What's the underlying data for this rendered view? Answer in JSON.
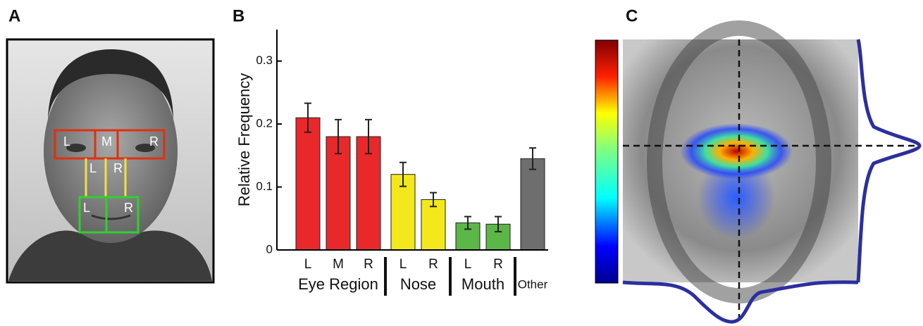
{
  "panel_labels": [
    "A",
    "B",
    "C"
  ],
  "face_box_labels": {
    "eyes": [
      "L",
      "M",
      "R"
    ],
    "nose": [
      "L",
      "R"
    ],
    "mouth": [
      "L",
      "R"
    ]
  },
  "chart_data": {
    "type": "bar",
    "y_label": "Relative Frequency",
    "ylim": [
      0,
      0.35
    ],
    "yticks": [
      0,
      0.1,
      0.2,
      0.3
    ],
    "groups": [
      {
        "name": "Eye Region",
        "color": "#e8282a",
        "categories": [
          "L",
          "M",
          "R"
        ],
        "values": [
          0.21,
          0.18,
          0.18
        ],
        "errors": [
          0.023,
          0.027,
          0.027
        ]
      },
      {
        "name": "Nose",
        "color": "#f2e81c",
        "categories": [
          "L",
          "R"
        ],
        "values": [
          0.12,
          0.08
        ],
        "errors": [
          0.019,
          0.011
        ]
      },
      {
        "name": "Mouth",
        "color": "#5cb748",
        "categories": [
          "L",
          "R"
        ],
        "values": [
          0.043,
          0.041
        ],
        "errors": [
          0.01,
          0.012
        ]
      },
      {
        "color": "#6e6e6e",
        "categories": [
          "Other"
        ],
        "values": [
          0.145
        ],
        "errors": [
          0.017
        ]
      }
    ]
  }
}
